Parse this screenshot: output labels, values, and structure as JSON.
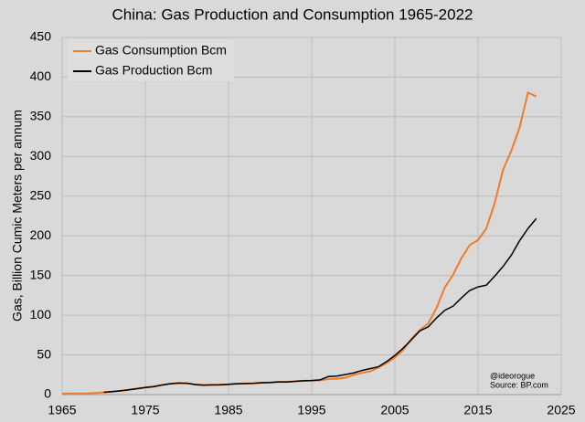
{
  "chart_data": {
    "type": "line",
    "title": "China: Gas Production and Consumption 1965-2022",
    "y_label": "Gas, Billion Cumic Meters per annum",
    "annotations": [
      "@ideorogue",
      "Source: BP.com"
    ],
    "x": [
      1965,
      1966,
      1967,
      1968,
      1969,
      1970,
      1971,
      1972,
      1973,
      1974,
      1975,
      1976,
      1977,
      1978,
      1979,
      1980,
      1981,
      1982,
      1983,
      1984,
      1985,
      1986,
      1987,
      1988,
      1989,
      1990,
      1991,
      1992,
      1993,
      1994,
      1995,
      1996,
      1997,
      1998,
      1999,
      2000,
      2001,
      2002,
      2003,
      2004,
      2005,
      2006,
      2007,
      2008,
      2009,
      2010,
      2011,
      2012,
      2013,
      2014,
      2015,
      2016,
      2017,
      2018,
      2019,
      2020,
      2021,
      2022
    ],
    "series": [
      {
        "name": "Gas Consumption Bcm",
        "color": "#f07c2a",
        "values": [
          1.1,
          1.5,
          1.4,
          1.4,
          2.0,
          2.9,
          3.7,
          4.8,
          6.0,
          7.5,
          8.9,
          10.1,
          12.1,
          13.7,
          14.5,
          14.3,
          12.7,
          11.9,
          12.2,
          12.4,
          12.9,
          13.7,
          13.9,
          14.2,
          15.0,
          15.3,
          15.9,
          15.9,
          16.7,
          17.4,
          17.7,
          18.0,
          19.5,
          20.0,
          21.2,
          24.5,
          27.4,
          29.2,
          33.9,
          39.7,
          46.8,
          56.1,
          70.5,
          81.3,
          89.5,
          108.9,
          135.2,
          150.9,
          171.9,
          188.4,
          194.7,
          209.4,
          241.3,
          283.0,
          307.3,
          336.6,
          380.5,
          375.7
        ]
      },
      {
        "name": "Gas Production Bcm",
        "color": "#000000",
        "values": [
          null,
          null,
          null,
          null,
          null,
          2.9,
          3.7,
          4.8,
          6.0,
          7.5,
          8.9,
          10.1,
          12.1,
          13.7,
          14.5,
          14.3,
          12.7,
          11.9,
          12.2,
          12.4,
          12.9,
          13.7,
          13.9,
          14.2,
          15.0,
          15.3,
          15.9,
          15.9,
          16.7,
          17.4,
          17.7,
          18.5,
          22.7,
          23.3,
          25.2,
          27.2,
          30.3,
          32.7,
          35.0,
          41.5,
          49.3,
          58.6,
          69.2,
          80.3,
          85.3,
          96.5,
          106.2,
          111.5,
          121.8,
          131.2,
          135.7,
          137.9,
          149.2,
          161.4,
          175.7,
          194.0,
          209.2,
          221.8
        ]
      }
    ],
    "xlim": [
      1965,
      2025
    ],
    "xticks": [
      1965,
      1975,
      1985,
      1995,
      2005,
      2015,
      2025
    ],
    "ylim": [
      0,
      450
    ],
    "yticks": [
      0,
      50,
      100,
      150,
      200,
      250,
      300,
      350,
      400,
      450
    ],
    "grid": true,
    "legend": "upper left"
  }
}
